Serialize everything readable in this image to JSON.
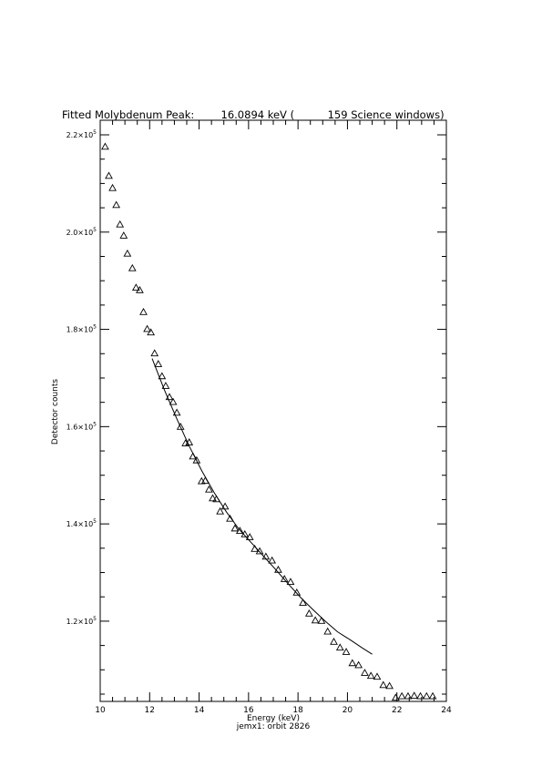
{
  "chart_data": {
    "type": "scatter",
    "title": "Fitted Molybdenum Peak:        16.0894 keV (          159 Science windows)",
    "subtitle": "jemx1: orbit 2826",
    "xlabel": "Energy (keV)",
    "ylabel": "Detector counts",
    "xlim": [
      10,
      24
    ],
    "ylim": [
      103500,
      223000
    ],
    "xticks": [
      10,
      12,
      14,
      16,
      18,
      20,
      22,
      24
    ],
    "xtick_labels": [
      "10",
      "12",
      "14",
      "16",
      "18",
      "20",
      "22",
      "24"
    ],
    "yticks": [
      120000,
      140000,
      160000,
      180000,
      200000,
      220000
    ],
    "ytick_mantissa": [
      "1.2",
      "1.4",
      "1.6",
      "1.8",
      "2.0",
      "2.2"
    ],
    "ytick_exponent": "5",
    "grid": false,
    "series": [
      {
        "marker": "triangle",
        "x": [
          10.2,
          10.35,
          10.5,
          10.65,
          10.8,
          10.95,
          11.1,
          11.3,
          11.45,
          11.6,
          11.75,
          11.9,
          12.05,
          12.2,
          12.35,
          12.5,
          12.65,
          12.8,
          12.95,
          13.1,
          13.25,
          13.45,
          13.6,
          13.75,
          13.9,
          14.1,
          14.25,
          14.4,
          14.55,
          14.7,
          14.85,
          15.05,
          15.25,
          15.45,
          15.65,
          15.85,
          16.05,
          16.25,
          16.45,
          16.7,
          16.95,
          17.2,
          17.45,
          17.7,
          17.95,
          18.2,
          18.45,
          18.7,
          18.95,
          19.2,
          19.45,
          19.7,
          19.95,
          20.2,
          20.45,
          20.7,
          20.95,
          21.2,
          21.45,
          21.7,
          21.95,
          22.2,
          22.45,
          22.7,
          22.95,
          23.2,
          23.45
        ],
        "y": [
          217500,
          211500,
          209000,
          205500,
          201500,
          199200,
          195500,
          192500,
          188500,
          188000,
          183500,
          180000,
          179300,
          175000,
          172800,
          170300,
          168300,
          166000,
          165000,
          162800,
          159900,
          156500,
          156700,
          153800,
          153000,
          148700,
          148800,
          147000,
          145200,
          145000,
          142500,
          143500,
          141000,
          139000,
          138500,
          137800,
          137200,
          134800,
          134300,
          133200,
          132400,
          130500,
          128600,
          128000,
          125800,
          123700,
          121500,
          120100,
          120000,
          117800,
          115700,
          114500,
          113600,
          111300,
          110900,
          109300,
          108700,
          108500,
          106800,
          106600,
          104200,
          104500,
          104500,
          104600,
          104500,
          104500,
          104500
        ]
      },
      {
        "marker": "line",
        "x": [
          12.1,
          12.6,
          13.1,
          13.6,
          14.1,
          14.6,
          15.1,
          15.6,
          16.1,
          16.6,
          17.1,
          17.6,
          18.1,
          18.6,
          19.1,
          19.6,
          20.1,
          20.6,
          21.0
        ],
        "y": [
          174000,
          167500,
          161600,
          156000,
          151000,
          146500,
          142500,
          139000,
          136200,
          133400,
          130600,
          127700,
          124900,
          122400,
          120000,
          117800,
          116200,
          114500,
          113200
        ]
      }
    ]
  }
}
